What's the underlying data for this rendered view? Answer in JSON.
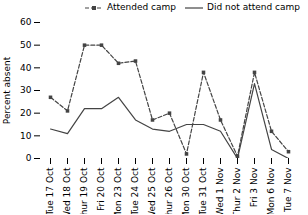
{
  "chart_data": {
    "type": "line",
    "categories": [
      "Tue 17 Oct",
      "Wed 18 Oct",
      "Thur 19 Oct",
      "Fri 20 Oct",
      "Mon 23 Oct",
      "Tue 24 Oct",
      "Wed 25 Oct",
      "Thur 26 Oct",
      "Mon 30 Oct",
      "Tue 31 Oct",
      "Wed 1 Nov",
      "Thur 2 Nov",
      "Fri 3 Nov",
      "Mon 6 Nov",
      "Tue 7 Nov"
    ],
    "series": [
      {
        "name": "Attended camp",
        "color": "#444444",
        "line_style": "dashed",
        "marker": "square",
        "values": [
          27,
          21,
          50,
          50,
          42,
          43,
          17,
          20,
          2,
          38,
          17,
          1,
          38,
          12,
          3
        ]
      },
      {
        "name": "Did not attend camp",
        "color": "#444444",
        "line_style": "solid",
        "marker": "none",
        "values": [
          13,
          11,
          22,
          22,
          27,
          17,
          13,
          12,
          15,
          15,
          12,
          0,
          33,
          4,
          0
        ]
      }
    ],
    "ylabel": "Percent absent",
    "ylim": [
      0,
      60
    ],
    "yticks": [
      0,
      10,
      20,
      30,
      40,
      50,
      60
    ],
    "grid": false,
    "legend": "upper right"
  }
}
